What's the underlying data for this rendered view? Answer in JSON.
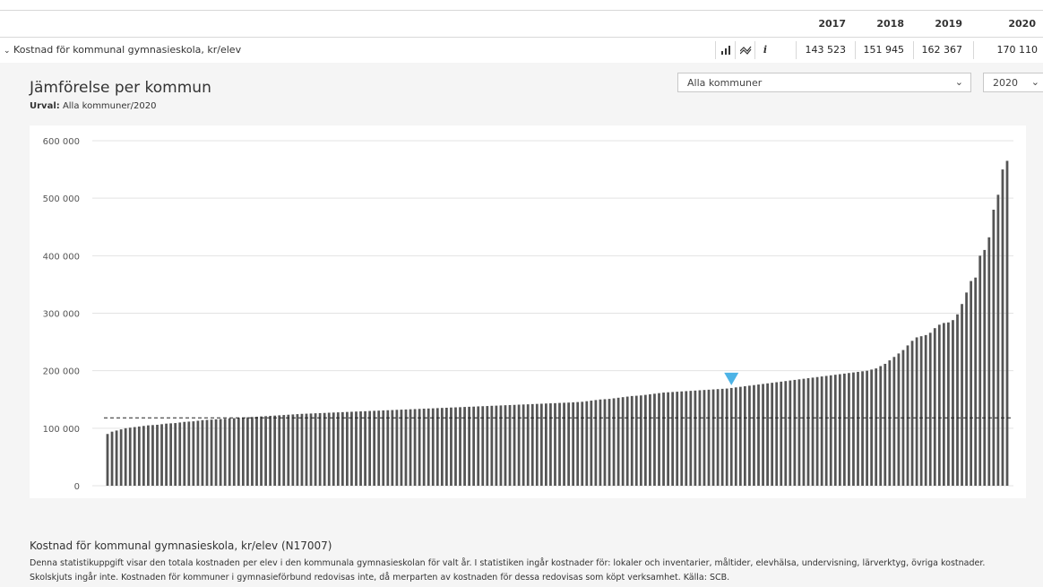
{
  "header": {
    "years": [
      "2017",
      "2018",
      "2019",
      "2020"
    ],
    "indicator": {
      "title": "Kostnad för kommunal gymnasieskola, kr/elev",
      "values": [
        "143 523",
        "151 945",
        "162 367",
        "170 110"
      ],
      "icons": [
        "bar-chart-icon",
        "trend-icon",
        "info-icon"
      ]
    }
  },
  "comparison": {
    "title": "Jämförelse per kommun",
    "selection_label": "Urval:",
    "selection_value": "Alla kommuner/2020",
    "municipality_select": "Alla kommuner",
    "year_select": "2020"
  },
  "footer": {
    "title": "Kostnad för kommunal gymnasieskola, kr/elev (N17007)",
    "description": "Denna statistikuppgift visar den totala kostnaden per elev i den kommunala gymnasieskolan för valt år. I statistiken ingår kostnader för: lokaler och inventarier, måltider, elevhälsa, undervisning, lärverktyg, övriga kostnader. Skolskjuts ingår inte. Kostnaden för kommuner i gymnasieförbund redovisas inte, då merparten av kostnaden för dessa redovisas som köpt verksamhet. Källa: SCB."
  },
  "colors": {
    "bar": "#555555",
    "marker": "#4db3e6",
    "grid": "#e3e3e3",
    "reference": "#222222"
  },
  "chart_data": {
    "type": "bar",
    "ylim": [
      0,
      600000
    ],
    "yticks": [
      0,
      100000,
      200000,
      300000,
      400000,
      500000,
      600000
    ],
    "ytick_labels": [
      "0",
      "100 000",
      "200 000",
      "300 000",
      "400 000",
      "500 000",
      "600 000"
    ],
    "grid": true,
    "reference_line": 118000,
    "marker_value": 170110,
    "values": [
      90000,
      94000,
      96000,
      98000,
      100000,
      101000,
      102000,
      103000,
      104000,
      105000,
      105500,
      106000,
      107000,
      108000,
      108500,
      109000,
      110000,
      111000,
      111500,
      112000,
      113000,
      114000,
      114500,
      115000,
      115500,
      116000,
      116500,
      117000,
      117500,
      118000,
      118500,
      119000,
      119500,
      120000,
      120500,
      121000,
      121500,
      122000,
      122500,
      123000,
      123500,
      124000,
      124500,
      125000,
      125300,
      125600,
      126000,
      126300,
      126600,
      127000,
      127300,
      127600,
      128000,
      128300,
      128600,
      129000,
      129300,
      129600,
      130000,
      130300,
      130600,
      131000,
      131300,
      131600,
      132000,
      132300,
      132600,
      133000,
      133300,
      133600,
      134000,
      134300,
      134600,
      135000,
      135300,
      135600,
      136000,
      136300,
      136600,
      137000,
      137300,
      137600,
      138000,
      138300,
      138600,
      139000,
      139300,
      139600,
      140000,
      140300,
      140600,
      141000,
      141300,
      141600,
      142000,
      142300,
      142600,
      143000,
      143300,
      143600,
      144000,
      144300,
      144600,
      145000,
      145500,
      146000,
      147000,
      148000,
      149000,
      150000,
      150500,
      151000,
      152000,
      153000,
      154000,
      155000,
      156000,
      156500,
      157000,
      158000,
      159000,
      160000,
      161000,
      162000,
      162500,
      163000,
      163500,
      164000,
      164500,
      165000,
      165500,
      166000,
      166500,
      167000,
      167500,
      168000,
      168500,
      169000,
      170000,
      171000,
      172000,
      173000,
      174000,
      175000,
      176000,
      177000,
      178000,
      179000,
      180000,
      181000,
      182000,
      183000,
      184000,
      185000,
      186000,
      187000,
      188000,
      189000,
      190000,
      191000,
      192000,
      193000,
      194000,
      195000,
      196000,
      197000,
      198000,
      199000,
      200000,
      202000,
      204000,
      208000,
      212000,
      218000,
      224000,
      230000,
      236000,
      244000,
      252000,
      258000,
      260000,
      262000,
      266000,
      274000,
      280000,
      283000,
      284000,
      288000,
      298000,
      316000,
      336000,
      356000,
      362000,
      400000,
      410000,
      432000,
      480000,
      506000,
      550000,
      565000
    ]
  }
}
